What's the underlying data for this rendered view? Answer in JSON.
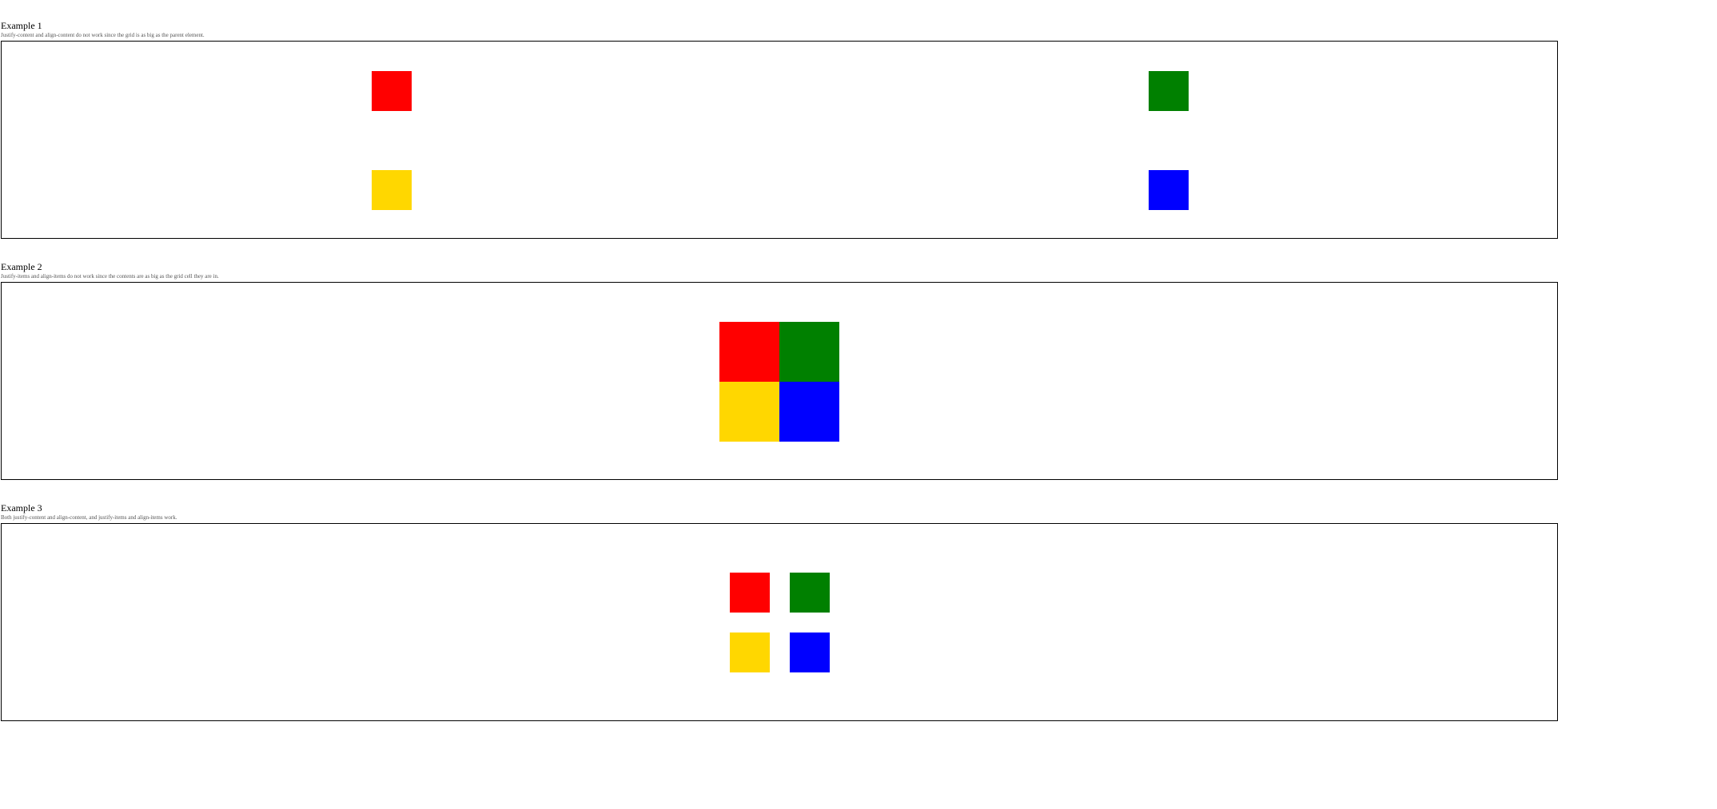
{
  "colors": {
    "red": "#ff0000",
    "green": "#008000",
    "yellow": "#ffd700",
    "blue": "#0000ff",
    "border": "#000000",
    "description_text": "#555555"
  },
  "examples": [
    {
      "title": "Example 1",
      "description": "Justify-content and align-content do not work since the grid is as big as the parent element.",
      "items": [
        "red",
        "green",
        "yellow",
        "blue"
      ]
    },
    {
      "title": "Example 2",
      "description": "Justify-items and align-items do not work since the contents are as big as the grid cell they are in.",
      "items": [
        "red",
        "green",
        "yellow",
        "blue"
      ]
    },
    {
      "title": "Example 3",
      "description": "Both justify-content and align-content, and justify-items and align-items work.",
      "items": [
        "red",
        "green",
        "yellow",
        "blue"
      ]
    }
  ]
}
